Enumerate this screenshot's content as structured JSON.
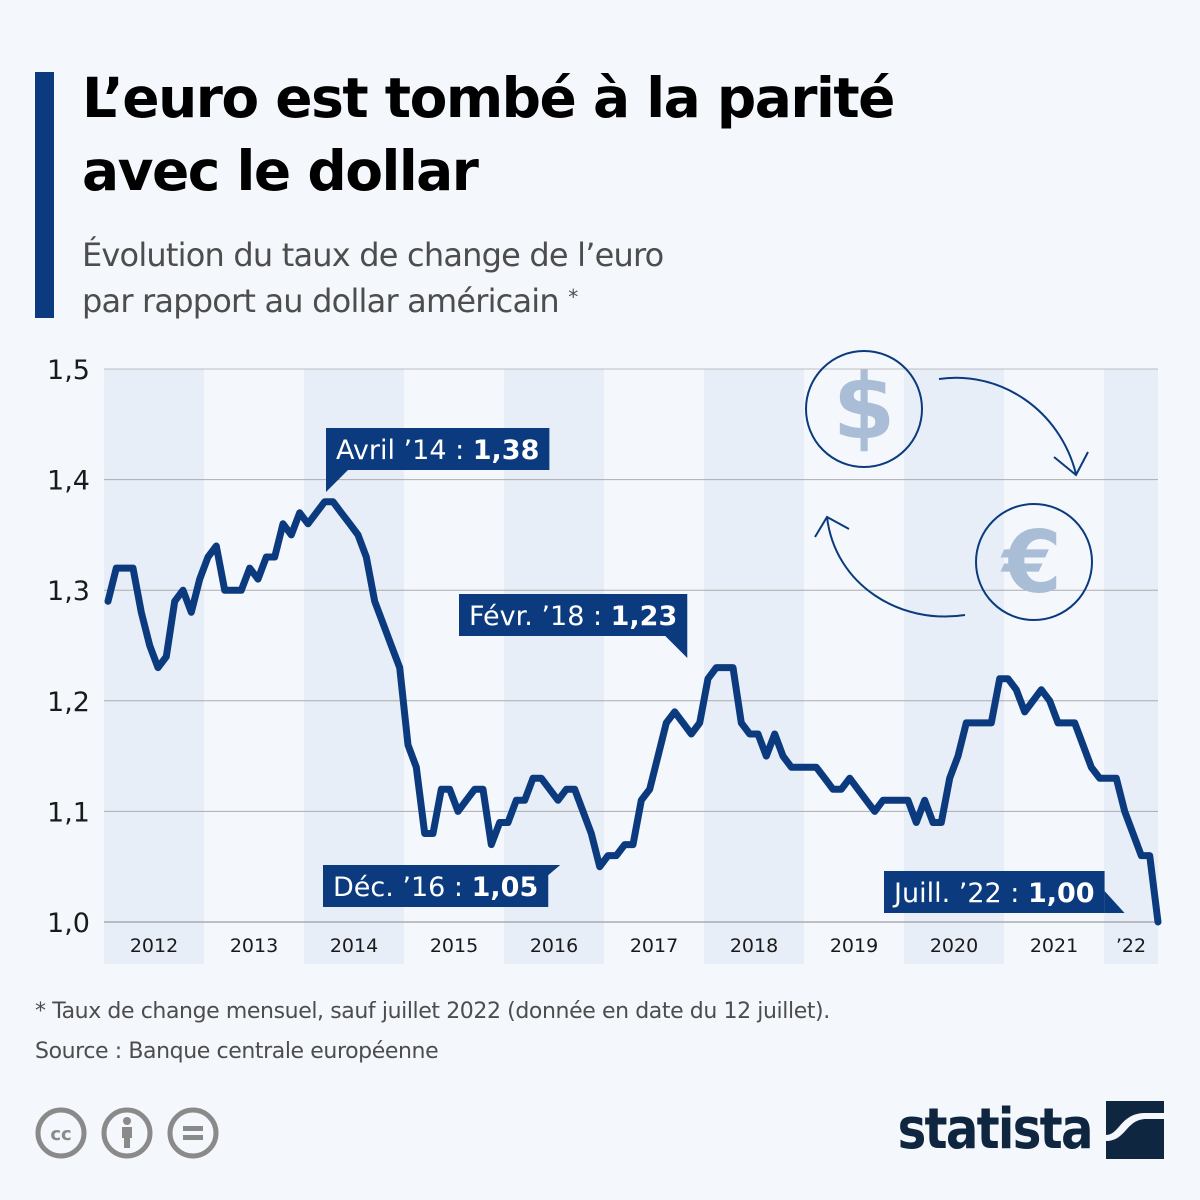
{
  "header": {
    "title_line1": "L’euro est tombé à la parité",
    "title_line2": "avec le dollar",
    "subtitle_line1": "Évolution du taux de change de l’euro",
    "subtitle_line2": "par rapport au dollar américain",
    "subtitle_marker": "*"
  },
  "colors": {
    "accent": "#0b3b7e",
    "line": "#0b3b7e",
    "band_dark": "#e8eef7",
    "band_light": "#f4f7fb",
    "grid": "#9a9a9a",
    "icon_fill": "#a9bdd7",
    "brand": "#0f2640"
  },
  "chart_data": {
    "type": "line",
    "title": "L’euro est tombé à la parité avec le dollar",
    "subtitle": "Évolution du taux de change de l’euro par rapport au dollar américain *",
    "xlabel": "",
    "ylabel": "",
    "ylim": [
      1.0,
      1.5
    ],
    "yticks": [
      1.0,
      1.1,
      1.2,
      1.3,
      1.4,
      1.5
    ],
    "ytick_labels": [
      "1,0",
      "1,1",
      "1,2",
      "1,3",
      "1,4",
      "1,5"
    ],
    "x_start": "2012-01",
    "x_end": "2022-07",
    "xtick_labels": [
      "2012",
      "2013",
      "2014",
      "2015",
      "2016",
      "2017",
      "2018",
      "2019",
      "2020",
      "2021",
      "’22"
    ],
    "grid": true,
    "legend": "none",
    "series": [
      {
        "name": "EUR/USD",
        "frequency": "monthly",
        "values": [
          1.29,
          1.32,
          1.32,
          1.32,
          1.28,
          1.25,
          1.23,
          1.24,
          1.29,
          1.3,
          1.28,
          1.31,
          1.33,
          1.34,
          1.3,
          1.3,
          1.3,
          1.32,
          1.31,
          1.33,
          1.33,
          1.36,
          1.35,
          1.37,
          1.36,
          1.37,
          1.38,
          1.38,
          1.37,
          1.36,
          1.35,
          1.33,
          1.29,
          1.27,
          1.25,
          1.23,
          1.16,
          1.14,
          1.08,
          1.08,
          1.12,
          1.12,
          1.1,
          1.11,
          1.12,
          1.12,
          1.07,
          1.09,
          1.09,
          1.11,
          1.11,
          1.13,
          1.13,
          1.12,
          1.11,
          1.12,
          1.12,
          1.1,
          1.08,
          1.05,
          1.06,
          1.06,
          1.07,
          1.07,
          1.11,
          1.12,
          1.15,
          1.18,
          1.19,
          1.18,
          1.17,
          1.18,
          1.22,
          1.23,
          1.23,
          1.23,
          1.18,
          1.17,
          1.17,
          1.15,
          1.17,
          1.15,
          1.14,
          1.14,
          1.14,
          1.14,
          1.13,
          1.12,
          1.12,
          1.13,
          1.12,
          1.11,
          1.1,
          1.11,
          1.11,
          1.11,
          1.11,
          1.09,
          1.11,
          1.09,
          1.09,
          1.13,
          1.15,
          1.18,
          1.18,
          1.18,
          1.18,
          1.22,
          1.22,
          1.21,
          1.19,
          1.2,
          1.21,
          1.2,
          1.18,
          1.18,
          1.18,
          1.16,
          1.14,
          1.13,
          1.13,
          1.13,
          1.1,
          1.08,
          1.06,
          1.06,
          1.0
        ]
      }
    ],
    "annotations": [
      {
        "label": "Avril ’14 : ",
        "value_text": "1,38",
        "date": "2014-04",
        "value": 1.38
      },
      {
        "label": "Févr. ’18 : ",
        "value_text": "1,23",
        "date": "2018-02",
        "value": 1.23
      },
      {
        "label": "Déc. ’16 : ",
        "value_text": "1,05",
        "date": "2016-12",
        "value": 1.05
      },
      {
        "label": "Juill. ’22 : ",
        "value_text": "1,00",
        "date": "2022-07",
        "value": 1.0
      }
    ]
  },
  "illustration": {
    "top_symbol": "$",
    "bottom_symbol": "€",
    "icons": [
      "dollar-coin-icon",
      "euro-coin-icon",
      "arrow-curved-down-icon",
      "arrow-curved-up-icon"
    ]
  },
  "footer": {
    "note": "* Taux de change mensuel, sauf juillet 2022 (donnée en date du 12 juillet).",
    "source": "Source : Banque centrale européenne",
    "license_icons": [
      "cc-icon",
      "attribution-icon",
      "no-derivatives-icon"
    ],
    "brand": "statista"
  }
}
